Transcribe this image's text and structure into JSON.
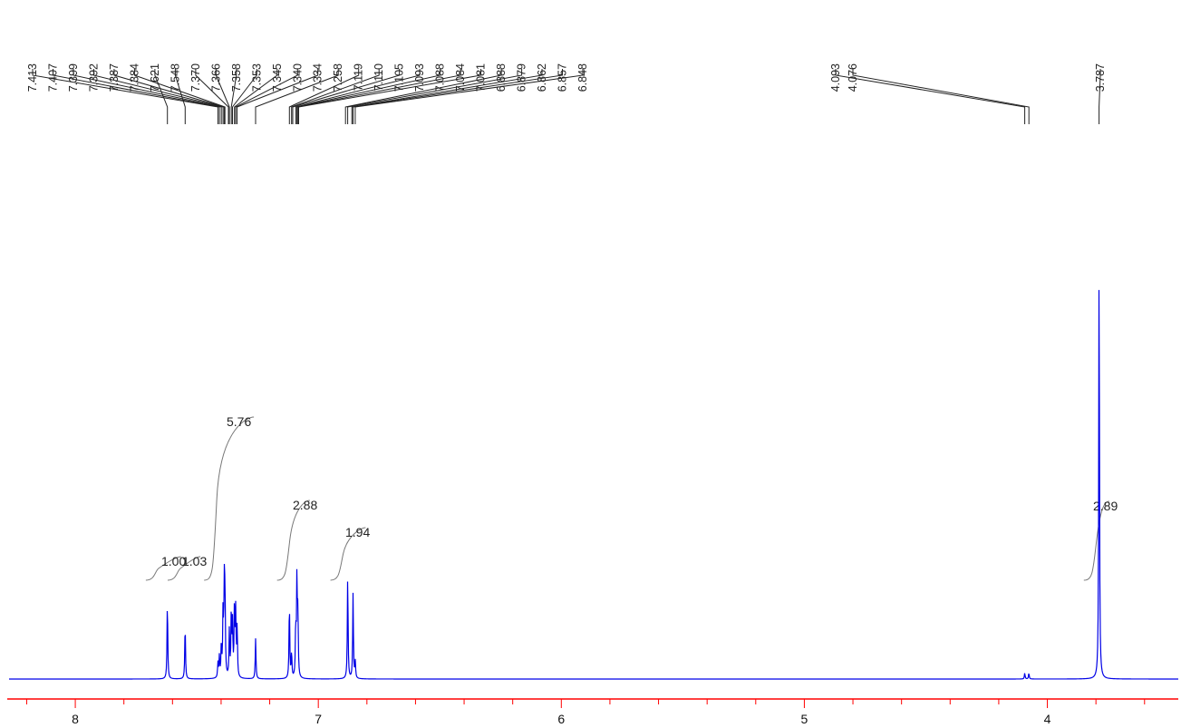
{
  "chart_data": {
    "type": "line",
    "title": "",
    "xlabel": "",
    "ylabel": "",
    "x_axis": {
      "reversed": true,
      "range": [
        8.28,
        3.45
      ],
      "major_ticks": [
        8,
        7,
        6,
        5,
        4
      ],
      "major_tick_labels": [
        "8",
        "7",
        "6",
        "5",
        "4"
      ],
      "minor_tick_step": 0.2
    },
    "colors": {
      "spectrum": "#0000e6",
      "axis": "#ff0000",
      "labels": "#222222",
      "integral": "#777777"
    },
    "peak_labels": [
      {
        "text": "7.413",
        "ppm": 7.413
      },
      {
        "text": "7.407",
        "ppm": 7.407
      },
      {
        "text": "7.399",
        "ppm": 7.399
      },
      {
        "text": "7.392",
        "ppm": 7.392
      },
      {
        "text": "7.387",
        "ppm": 7.387
      },
      {
        "text": "7.384",
        "ppm": 7.384
      },
      {
        "text": "7.621",
        "ppm": 7.621
      },
      {
        "text": "7.548",
        "ppm": 7.548
      },
      {
        "text": "7.370",
        "ppm": 7.37
      },
      {
        "text": "7.366",
        "ppm": 7.366
      },
      {
        "text": "7.358",
        "ppm": 7.358
      },
      {
        "text": "7.353",
        "ppm": 7.353
      },
      {
        "text": "7.345",
        "ppm": 7.345
      },
      {
        "text": "7.340",
        "ppm": 7.34
      },
      {
        "text": "7.334",
        "ppm": 7.334
      },
      {
        "text": "7.258",
        "ppm": 7.258
      },
      {
        "text": "7.119",
        "ppm": 7.119
      },
      {
        "text": "7.110",
        "ppm": 7.11
      },
      {
        "text": "7.105",
        "ppm": 7.105
      },
      {
        "text": "7.093",
        "ppm": 7.093
      },
      {
        "text": "7.088",
        "ppm": 7.088
      },
      {
        "text": "7.084",
        "ppm": 7.084
      },
      {
        "text": "7.081",
        "ppm": 7.081
      },
      {
        "text": "6.888",
        "ppm": 6.888
      },
      {
        "text": "6.879",
        "ppm": 6.879
      },
      {
        "text": "6.862",
        "ppm": 6.862
      },
      {
        "text": "6.857",
        "ppm": 6.857
      },
      {
        "text": "6.848",
        "ppm": 6.848
      },
      {
        "text": "4.093",
        "ppm": 4.093
      },
      {
        "text": "4.076",
        "ppm": 4.076
      },
      {
        "text": "3.787",
        "ppm": 3.787
      }
    ],
    "integrals": [
      {
        "text": "1.00",
        "from": 7.68,
        "to": 7.58
      },
      {
        "text": "1.03",
        "from": 7.59,
        "to": 7.5
      },
      {
        "text": "5.76",
        "from": 7.44,
        "to": 7.28
      },
      {
        "text": "2.88",
        "from": 7.14,
        "to": 7.05
      },
      {
        "text": "1.94",
        "from": 6.92,
        "to": 6.82
      },
      {
        "text": "2.89",
        "from": 3.82,
        "to": 3.76
      }
    ],
    "peaks": [
      {
        "ppm": 7.621,
        "height": 0.185
      },
      {
        "ppm": 7.548,
        "height": 0.13
      },
      {
        "ppm": 7.413,
        "height": 0.035
      },
      {
        "ppm": 7.407,
        "height": 0.05
      },
      {
        "ppm": 7.399,
        "height": 0.08
      },
      {
        "ppm": 7.392,
        "height": 0.15
      },
      {
        "ppm": 7.387,
        "height": 0.2
      },
      {
        "ppm": 7.384,
        "height": 0.19
      },
      {
        "ppm": 7.366,
        "height": 0.11
      },
      {
        "ppm": 7.358,
        "height": 0.16
      },
      {
        "ppm": 7.353,
        "height": 0.12
      },
      {
        "ppm": 7.345,
        "height": 0.175
      },
      {
        "ppm": 7.34,
        "height": 0.15
      },
      {
        "ppm": 7.334,
        "height": 0.12
      },
      {
        "ppm": 7.258,
        "height": 0.095
      },
      {
        "ppm": 7.119,
        "height": 0.18
      },
      {
        "ppm": 7.11,
        "height": 0.06
      },
      {
        "ppm": 7.093,
        "height": 0.12
      },
      {
        "ppm": 7.088,
        "height": 0.23
      },
      {
        "ppm": 7.084,
        "height": 0.15
      },
      {
        "ppm": 6.879,
        "height": 0.245
      },
      {
        "ppm": 6.857,
        "height": 0.2
      },
      {
        "ppm": 6.848,
        "height": 0.04
      },
      {
        "ppm": 4.093,
        "height": 0.014
      },
      {
        "ppm": 4.076,
        "height": 0.014
      },
      {
        "ppm": 3.787,
        "height": 1.0
      }
    ]
  }
}
